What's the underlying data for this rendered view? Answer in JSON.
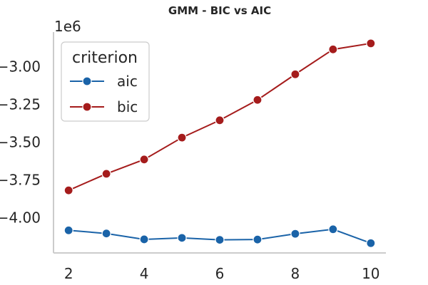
{
  "chart_data": {
    "type": "line",
    "title": "GMM - BIC vs AIC",
    "xlabel": "",
    "ylabel": "",
    "y_offset_label": "1e6",
    "x": [
      2,
      3,
      4,
      5,
      6,
      7,
      8,
      9,
      10
    ],
    "xlim": [
      1.6,
      10.4
    ],
    "ylim": [
      -4.235,
      -2.77
    ],
    "x_ticks": [
      2,
      4,
      6,
      8,
      10
    ],
    "x_tick_labels": [
      "2",
      "4",
      "6",
      "8",
      "10"
    ],
    "y_ticks": [
      -4.0,
      -3.75,
      -3.5,
      -3.25,
      -3.0
    ],
    "y_tick_labels": [
      "−4.00",
      "−3.75",
      "−3.50",
      "−3.25",
      "−3.00"
    ],
    "grid": false,
    "legend": {
      "title": "criterion",
      "placement": "top-left"
    },
    "series": [
      {
        "name": "aic",
        "color": "#1a63a8",
        "values": [
          -4.085,
          -4.106,
          -4.145,
          -4.135,
          -4.148,
          -4.146,
          -4.108,
          -4.078,
          -4.17
        ]
      },
      {
        "name": "bic",
        "color": "#a51c1c",
        "values": [
          -3.82,
          -3.71,
          -3.615,
          -3.47,
          -3.355,
          -3.22,
          -3.05,
          -2.885,
          -2.845
        ]
      }
    ]
  }
}
